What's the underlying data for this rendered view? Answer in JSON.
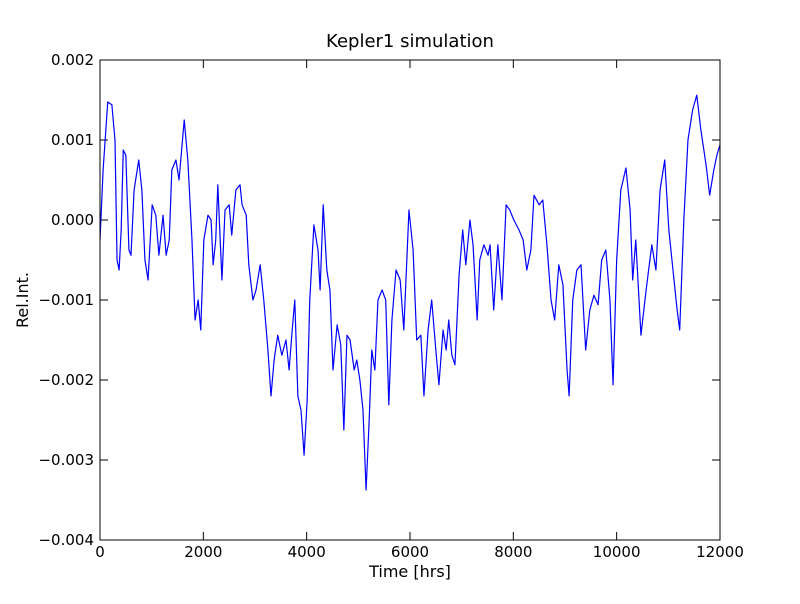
{
  "chart_data": {
    "type": "line",
    "title": "Kepler1 simulation",
    "x_label": "Time [hrs]",
    "y_label": "Rel.Int.",
    "xlim": [
      0,
      12000
    ],
    "ylim": [
      -0.004,
      0.002
    ],
    "xticks": [
      0,
      2000,
      4000,
      6000,
      8000,
      10000,
      12000
    ],
    "yticks": [
      {
        "value": -0.004,
        "label": "−0.004"
      },
      {
        "value": -0.003,
        "label": "−0.003"
      },
      {
        "value": -0.002,
        "label": "−0.002"
      },
      {
        "value": -0.001,
        "label": "−0.001"
      },
      {
        "value": 0,
        "label": "0.000"
      },
      {
        "value": 0.001,
        "label": "0.001"
      },
      {
        "value": 0.002,
        "label": "0.002"
      }
    ],
    "grid": false,
    "x": [
      0,
      60,
      150,
      230,
      290,
      330,
      370,
      410,
      450,
      500,
      560,
      600,
      660,
      750,
      810,
      870,
      930,
      1010,
      1080,
      1140,
      1220,
      1280,
      1340,
      1390,
      1470,
      1530,
      1630,
      1700,
      1780,
      1840,
      1900,
      1950,
      2010,
      2090,
      2150,
      2190,
      2240,
      2280,
      2360,
      2420,
      2500,
      2550,
      2630,
      2710,
      2750,
      2830,
      2880,
      2960,
      3020,
      3100,
      3170,
      3250,
      3310,
      3370,
      3440,
      3520,
      3600,
      3660,
      3720,
      3770,
      3830,
      3890,
      3950,
      4010,
      4060,
      4140,
      4220,
      4260,
      4320,
      4390,
      4450,
      4510,
      4590,
      4660,
      4720,
      4780,
      4840,
      4920,
      4970,
      5030,
      5090,
      5150,
      5210,
      5260,
      5320,
      5380,
      5460,
      5530,
      5590,
      5650,
      5730,
      5810,
      5880,
      5980,
      6060,
      6130,
      6210,
      6270,
      6350,
      6420,
      6500,
      6560,
      6640,
      6700,
      6750,
      6810,
      6870,
      6950,
      7020,
      7080,
      7160,
      7220,
      7300,
      7350,
      7430,
      7510,
      7550,
      7620,
      7700,
      7780,
      7860,
      7930,
      8010,
      8110,
      8190,
      8260,
      8340,
      8400,
      8500,
      8570,
      8650,
      8730,
      8800,
      8880,
      8960,
      9040,
      9080,
      9150,
      9230,
      9310,
      9400,
      9480,
      9560,
      9640,
      9710,
      9790,
      9870,
      9930,
      10000,
      10080,
      10180,
      10260,
      10310,
      10370,
      10470,
      10570,
      10680,
      10760,
      10840,
      10930,
      11010,
      11090,
      11170,
      11220,
      11300,
      11380,
      11470,
      11550,
      11630,
      11730,
      11800,
      11880,
      11940,
      12000
    ],
    "series": [
      {
        "color": "#0000ff",
        "values": [
          -0.00025,
          0.000625,
          0.001475,
          0.00144,
          0.001,
          -0.0005,
          -0.000625,
          -0.000125,
          0.000875,
          0.00081,
          -0.000375,
          -0.00044,
          0.000375,
          0.00075,
          0.000375,
          -0.0005,
          -0.00075,
          0.00019,
          6e-05,
          -0.00044,
          6e-05,
          -0.00044,
          -0.00025,
          0.000625,
          0.00075,
          0.0005,
          0.00125,
          0.00075,
          -0.00025,
          -0.00125,
          -0.001,
          -0.001375,
          -0.00025,
          6e-05,
          0,
          -0.00056,
          -0.00025,
          0.00044,
          -0.00075,
          0.000125,
          0.00019,
          -0.00019,
          0.000375,
          0.00044,
          0.00019,
          6e-05,
          -0.00056,
          -0.001,
          -0.000875,
          -0.00056,
          -0.001,
          -0.001625,
          -0.0022,
          -0.00175,
          -0.00144,
          -0.00169,
          -0.0015,
          -0.001875,
          -0.001375,
          -0.001,
          -0.0022,
          -0.002375,
          -0.00294,
          -0.00225,
          -0.001,
          -6e-05,
          -0.000375,
          -0.000875,
          0.00019,
          -0.000625,
          -0.000875,
          -0.001875,
          -0.00131,
          -0.00156,
          -0.002625,
          -0.00144,
          -0.0015,
          -0.001875,
          -0.00175,
          -0.002,
          -0.002375,
          -0.003375,
          -0.0025,
          -0.001625,
          -0.001875,
          -0.001,
          -0.000875,
          -0.001,
          -0.00231,
          -0.00125,
          -0.000625,
          -0.00075,
          -0.001375,
          0.000125,
          -0.000375,
          -0.0015,
          -0.00144,
          -0.0022,
          -0.001375,
          -0.001,
          -0.001625,
          -0.00206,
          -0.001375,
          -0.001625,
          -0.00125,
          -0.00169,
          -0.00181,
          -0.00069,
          -0.000125,
          -0.00056,
          0,
          -0.00031,
          -0.00125,
          -0.0005,
          -0.00031,
          -0.00044,
          -0.00031,
          -0.001125,
          -0.00031,
          -0.001,
          0.00019,
          0.000125,
          0,
          -0.000125,
          -0.00025,
          -0.000625,
          -0.000375,
          0.00031,
          0.00019,
          0.00025,
          -0.00031,
          -0.001,
          -0.00125,
          -0.00056,
          -0.00081,
          -0.001875,
          -0.0022,
          -0.001,
          -0.000625,
          -0.00056,
          -0.001625,
          -0.001125,
          -0.00094,
          -0.00106,
          -0.0005,
          -0.000375,
          -0.001,
          -0.00206,
          -0.0005,
          0.000375,
          0.00065,
          0.000125,
          -0.00075,
          -0.00025,
          -0.00144,
          -0.000875,
          -0.00031,
          -0.000625,
          0.000375,
          0.00075,
          -0.000125,
          -0.000625,
          -0.001125,
          -0.001375,
          0,
          0.001,
          0.001375,
          0.00156,
          0.001125,
          0.00069,
          0.00031,
          0.000625,
          0.00081,
          0.00094
        ]
      }
    ]
  }
}
